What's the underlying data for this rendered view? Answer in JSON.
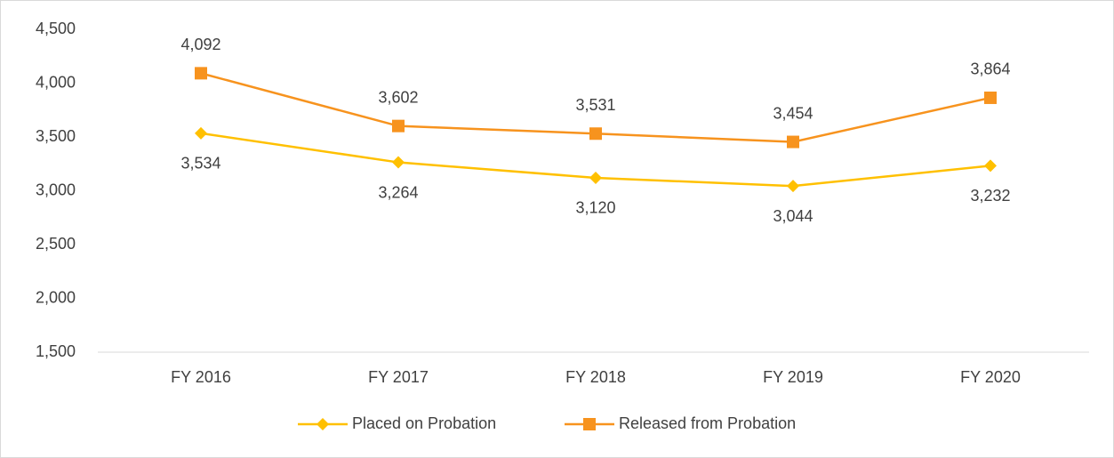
{
  "chart_data": {
    "type": "line",
    "categories": [
      "FY 2016",
      "FY 2017",
      "FY 2018",
      "FY 2019",
      "FY 2020"
    ],
    "series": [
      {
        "name": "Placed on Probation",
        "color": "#FFC000",
        "marker": "diamond",
        "values": [
          3534,
          3264,
          3120,
          3044,
          3232
        ],
        "value_labels": [
          "3,534",
          "3,264",
          "3,120",
          "3,044",
          "3,232"
        ]
      },
      {
        "name": "Released from Probation",
        "color": "#F7931E",
        "marker": "square",
        "values": [
          4092,
          3602,
          3531,
          3454,
          3864
        ],
        "value_labels": [
          "4,092",
          "3,602",
          "3,531",
          "3,454",
          "3,864"
        ]
      }
    ],
    "ylim": [
      1500,
      4500
    ],
    "yticks": [
      {
        "value": 1500,
        "label": "1,500"
      },
      {
        "value": 2000,
        "label": "2,000"
      },
      {
        "value": 2500,
        "label": "2,500"
      },
      {
        "value": 3000,
        "label": "3,000"
      },
      {
        "value": 3500,
        "label": "3,500"
      },
      {
        "value": 4000,
        "label": "4,000"
      },
      {
        "value": 4500,
        "label": "4,500"
      }
    ],
    "grid": false,
    "legend": "bottom"
  }
}
